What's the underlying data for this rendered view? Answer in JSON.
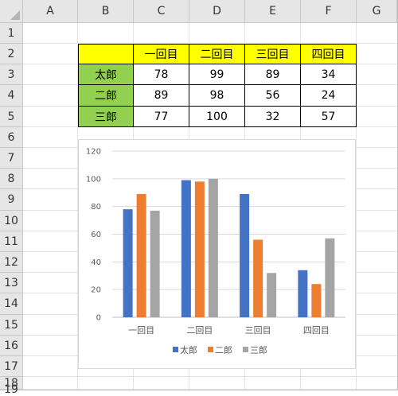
{
  "sheet": {
    "columns": [
      "A",
      "B",
      "C",
      "D",
      "E",
      "F",
      "G"
    ],
    "rows": [
      "1",
      "2",
      "3",
      "4",
      "5",
      "6",
      "7",
      "8",
      "9",
      "10",
      "11",
      "12",
      "13",
      "14",
      "15",
      "16",
      "17",
      "18",
      "19"
    ]
  },
  "table": {
    "headers": [
      "一回目",
      "二回目",
      "三回目",
      "四回目"
    ],
    "rows": [
      {
        "name": "太郎",
        "values": [
          "78",
          "99",
          "89",
          "34"
        ]
      },
      {
        "name": "二郎",
        "values": [
          "89",
          "98",
          "56",
          "24"
        ]
      },
      {
        "name": "三郎",
        "values": [
          "77",
          "100",
          "32",
          "57"
        ]
      }
    ],
    "header_color": "#ffff00",
    "name_color": "#92d050"
  },
  "chart_data": {
    "type": "bar",
    "categories": [
      "一回目",
      "二回目",
      "三回目",
      "四回目"
    ],
    "series": [
      {
        "name": "太郎",
        "values": [
          78,
          99,
          89,
          34
        ],
        "color": "#4472c4"
      },
      {
        "name": "二郎",
        "values": [
          89,
          98,
          56,
          24
        ],
        "color": "#ed7d31"
      },
      {
        "name": "三郎",
        "values": [
          77,
          100,
          32,
          57
        ],
        "color": "#a5a5a5"
      }
    ],
    "ylim": [
      0,
      120
    ],
    "yticks": [
      "0",
      "20",
      "40",
      "60",
      "80",
      "100",
      "120"
    ],
    "grid": true,
    "legend": "bottom"
  }
}
